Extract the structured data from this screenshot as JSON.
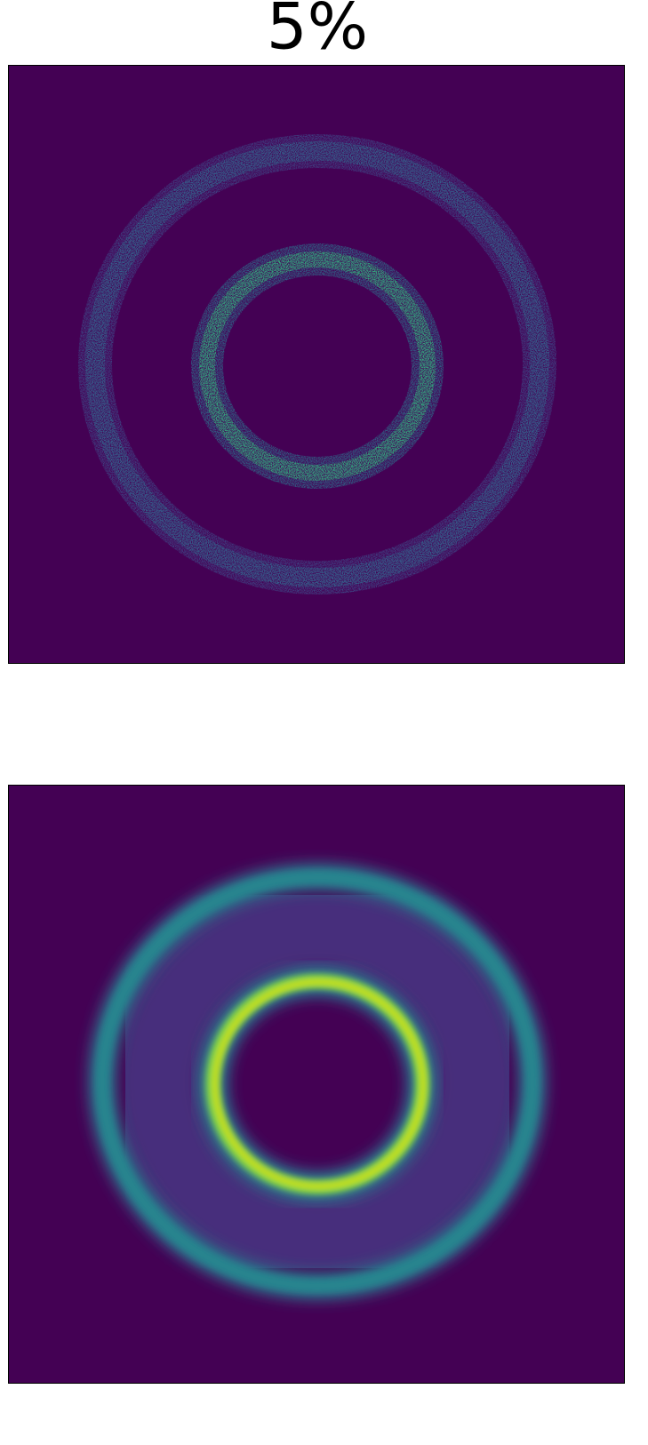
{
  "title": "5%"
}
